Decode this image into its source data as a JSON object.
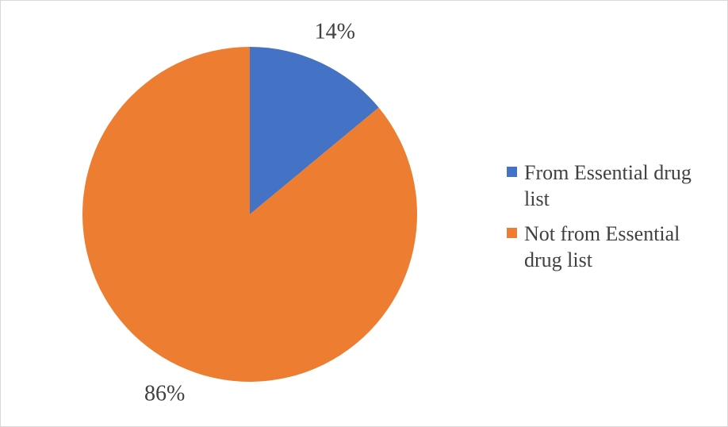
{
  "chart_data": {
    "type": "pie",
    "categories": [
      "From Essential drug list",
      "Not from Essential drug list"
    ],
    "values": [
      14,
      86
    ],
    "value_labels": [
      "14%",
      "86%"
    ],
    "colors": [
      "#4472c4",
      "#ed7d31"
    ],
    "legend": "right"
  }
}
